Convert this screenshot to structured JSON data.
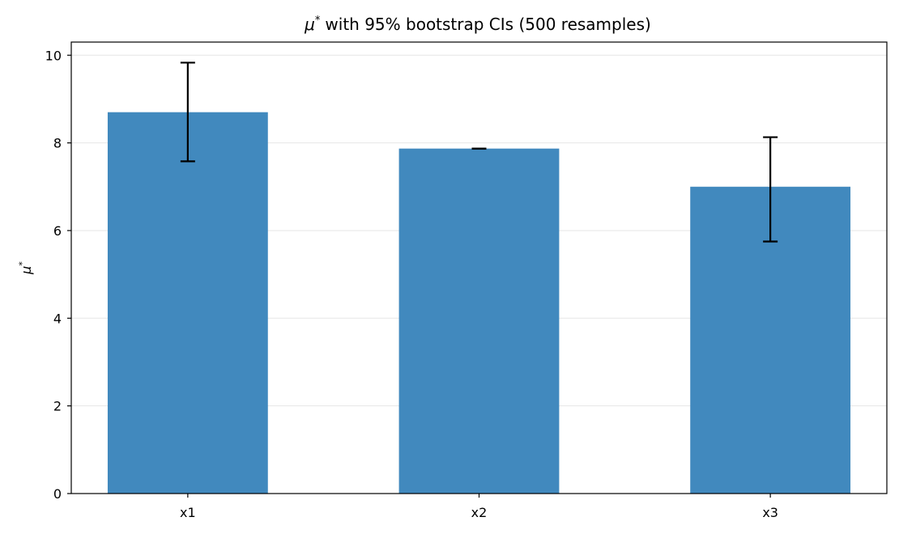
{
  "chart_data": {
    "type": "bar",
    "title_symbol": "μ",
    "title_rest": "with 95% bootstrap CIs (500 resamples)",
    "ylabel_symbol": "μ",
    "superscript": "*",
    "categories": [
      "x1",
      "x2",
      "x3"
    ],
    "series": [
      {
        "values": [
          8.7,
          7.87,
          7.0
        ],
        "ci_low": [
          7.58,
          7.87,
          5.75
        ],
        "ci_high": [
          9.83,
          7.87,
          8.13
        ]
      }
    ],
    "ylim": [
      0,
      10.3
    ],
    "yticks": [
      0,
      2,
      4,
      6,
      8,
      10
    ],
    "grid": "horizontal",
    "colors": {
      "bar": "#4189be",
      "error_bar": "#000000",
      "grid": "#e6e6e6",
      "axis": "#000000"
    }
  }
}
